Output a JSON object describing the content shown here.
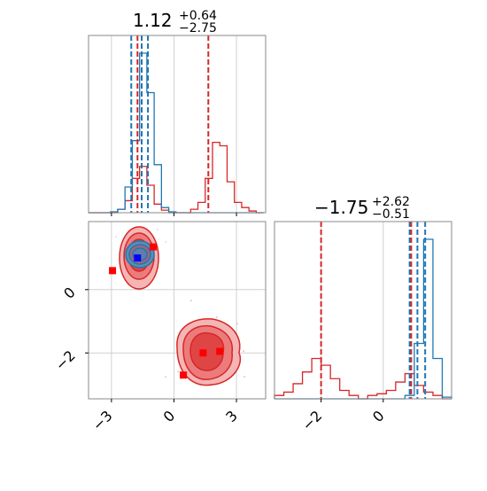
{
  "chart_data": {
    "type": "corner",
    "titles": [
      {
        "value": "1.12",
        "plus": "+0.64",
        "minus": "−2.75"
      },
      {
        "value": "−1.75",
        "plus": "+2.62",
        "minus": "−0.51"
      }
    ],
    "colors": {
      "blue": "#1f77b4",
      "red": "#d62728",
      "grid": "#d0d0d0",
      "frame": "#888888"
    },
    "x_param": {
      "range": [
        -4.1,
        4.4
      ],
      "ticks": [
        -3,
        0,
        3
      ],
      "tick_labels": [
        "−3",
        "0",
        "3"
      ],
      "grid": true
    },
    "y_param": {
      "range": [
        -3.45,
        2.15
      ],
      "ticks": [
        0,
        -2
      ],
      "tick_labels": [
        "0",
        "−2"
      ],
      "grid": true
    },
    "hist_x": {
      "bin_edges": [
        -4.1,
        -3.75,
        -3.4,
        -3.05,
        -2.7,
        -2.35,
        -2.0,
        -1.65,
        -1.3,
        -0.95,
        -0.6,
        -0.25,
        0.1,
        0.45,
        0.8,
        1.15,
        1.5,
        1.85,
        2.2,
        2.55,
        2.9,
        3.25,
        3.6,
        3.95,
        4.3
      ],
      "blue_counts": [
        0,
        0,
        0,
        0.5,
        2,
        15,
        42,
        93,
        70,
        28,
        3,
        0.5,
        0,
        0,
        0,
        0,
        0,
        0,
        0,
        0,
        0,
        0,
        0,
        0
      ],
      "red_counts": [
        0,
        0,
        0,
        0,
        2,
        7,
        20,
        27,
        16,
        5,
        1.5,
        0,
        0,
        0,
        2,
        6,
        20,
        41,
        39,
        18,
        6,
        3,
        1,
        0
      ],
      "blue_lines": [
        -2.05,
        -1.55,
        -1.25
      ],
      "red_lines": [
        -1.75,
        1.65
      ]
    },
    "hist_y": {
      "bin_edges": [
        -3.5,
        -3.2,
        -2.9,
        -2.6,
        -2.3,
        -2.0,
        -1.7,
        -1.4,
        -1.1,
        -0.8,
        -0.5,
        -0.2,
        0.1,
        0.4,
        0.7,
        1.0,
        1.3,
        1.6,
        1.9,
        2.2
      ],
      "blue_counts": [
        0,
        0,
        0,
        0,
        0,
        0,
        0,
        0,
        0,
        0,
        0,
        0,
        0,
        0,
        2,
        33,
        95,
        24,
        1
      ],
      "red_counts": [
        2,
        4,
        9,
        16,
        24,
        20,
        12,
        5,
        2,
        0,
        2,
        3,
        5,
        10,
        15,
        8,
        4,
        2,
        0
      ],
      "blue_lines": [
        0.85,
        1.1,
        1.35
      ],
      "red_lines": [
        -2.0,
        0.9
      ]
    },
    "scatter_2d": {
      "red_markers": [
        [
          -2.95,
          0.6
        ],
        [
          -1.0,
          1.35
        ],
        [
          1.4,
          -2.0
        ],
        [
          2.2,
          -1.95
        ],
        [
          0.45,
          -2.7
        ]
      ],
      "blue_marker": [
        -1.75,
        1.0
      ]
    }
  }
}
